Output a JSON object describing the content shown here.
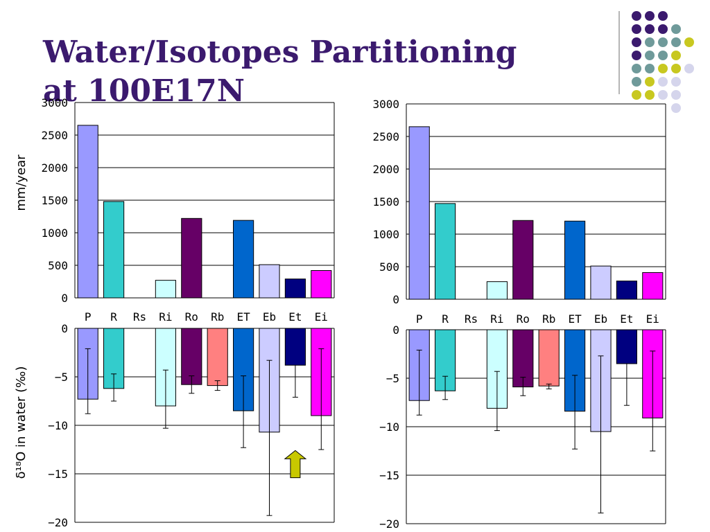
{
  "slide": {
    "title_line1": "Water/Isotopes Partitioning",
    "title_line2": "at 100E17N"
  },
  "decoration": {
    "dot_grid": [
      [
        "#3b1a6e",
        "#3b1a6e",
        "#3b1a6e",
        null,
        null
      ],
      [
        "#3b1a6e",
        "#3b1a6e",
        "#3b1a6e",
        "#6f9a9a",
        null
      ],
      [
        "#3b1a6e",
        "#6f9a9a",
        "#6f9a9a",
        "#6f9a9a",
        "#c8c820"
      ],
      [
        "#3b1a6e",
        "#6f9a9a",
        "#6f9a9a",
        "#c8c820",
        null
      ],
      [
        "#6f9a9a",
        "#6f9a9a",
        "#c8c820",
        "#c8c820",
        "#d5d5ec"
      ],
      [
        "#6f9a9a",
        "#c8c820",
        "#d5d5ec",
        "#d5d5ec",
        null
      ],
      [
        "#c8c820",
        "#c8c820",
        "#d5d5ec",
        "#d5d5ec",
        null
      ],
      [
        null,
        null,
        null,
        "#d5d5ec",
        null
      ]
    ],
    "line_color": "#b5b5b5"
  },
  "chart_data": [
    {
      "id": "flux-left",
      "type": "bar",
      "categories": [
        "P",
        "R",
        "Rs",
        "Ri",
        "Ro",
        "Rb",
        "ET",
        "Eb",
        "Et",
        "Ei"
      ],
      "values": [
        2650,
        1480,
        0,
        270,
        1220,
        0,
        1190,
        510,
        290,
        420
      ],
      "colors": [
        "#9999ff",
        "#33cccc",
        "#ccffff",
        "#ccffff",
        "#660066",
        "#ff8080",
        "#0066cc",
        "#ccccff",
        "#000080",
        "#ff00ff"
      ],
      "ylabel": "mm/year",
      "ylim": [
        0,
        3000
      ],
      "yticks": [
        0,
        500,
        1000,
        1500,
        2000,
        2500,
        3000
      ],
      "grid": true
    },
    {
      "id": "isotope-left",
      "type": "bar",
      "categories": [
        "P",
        "R",
        "Rs",
        "Ri",
        "Ro",
        "Rb",
        "ET",
        "Eb",
        "Et",
        "Ei"
      ],
      "values": [
        -7.3,
        -6.2,
        0,
        -8.0,
        -5.8,
        -5.9,
        -8.5,
        -10.7,
        -3.8,
        -9.0
      ],
      "error_low": [
        -8.8,
        -7.5,
        null,
        -10.3,
        -6.7,
        -6.4,
        -12.3,
        -19.3,
        -7.1,
        -12.5
      ],
      "error_high": [
        -2.1,
        -4.7,
        null,
        -4.3,
        -4.9,
        -5.4,
        -4.9,
        -3.3,
        null,
        -2.1
      ],
      "colors": [
        "#9999ff",
        "#33cccc",
        "#ccffff",
        "#ccffff",
        "#660066",
        "#ff8080",
        "#0066cc",
        "#ccccff",
        "#000080",
        "#ff00ff"
      ],
      "ylabel": "δ¹⁸O in water (‰)",
      "ylim": [
        -20,
        0
      ],
      "yticks": [
        0,
        -5,
        -10,
        -15,
        -20
      ],
      "grid": true,
      "annotation": {
        "type": "arrow-up",
        "category": "Et",
        "from": -15.4,
        "to": -12.6,
        "color": "#c8c800"
      }
    },
    {
      "id": "flux-right",
      "type": "bar",
      "categories": [
        "P",
        "R",
        "Rs",
        "Ri",
        "Ro",
        "Rb",
        "ET",
        "Eb",
        "Et",
        "Ei"
      ],
      "values": [
        2650,
        1470,
        0,
        270,
        1210,
        0,
        1200,
        510,
        280,
        410
      ],
      "colors": [
        "#9999ff",
        "#33cccc",
        "#ccffff",
        "#ccffff",
        "#660066",
        "#ff8080",
        "#0066cc",
        "#ccccff",
        "#000080",
        "#ff00ff"
      ],
      "ylabel": "",
      "ylim": [
        0,
        3000
      ],
      "yticks": [
        0,
        500,
        1000,
        1500,
        2000,
        2500,
        3000
      ],
      "grid": true
    },
    {
      "id": "isotope-right",
      "type": "bar",
      "categories": [
        "P",
        "R",
        "Rs",
        "Ri",
        "Ro",
        "Rb",
        "ET",
        "Eb",
        "Et",
        "Ei"
      ],
      "values": [
        -7.3,
        -6.3,
        0,
        -8.1,
        -5.9,
        -5.8,
        -8.4,
        -10.5,
        -3.5,
        -9.1
      ],
      "error_low": [
        -8.8,
        -7.2,
        null,
        -10.4,
        -6.8,
        -6.1,
        -12.3,
        -18.9,
        -7.8,
        -12.5
      ],
      "error_high": [
        -2.1,
        -4.8,
        null,
        -4.3,
        -4.9,
        -5.6,
        -4.7,
        -2.7,
        null,
        -2.2
      ],
      "colors": [
        "#9999ff",
        "#33cccc",
        "#ccffff",
        "#ccffff",
        "#660066",
        "#ff8080",
        "#0066cc",
        "#ccccff",
        "#000080",
        "#ff00ff"
      ],
      "ylabel": "",
      "ylim": [
        -20,
        0
      ],
      "yticks": [
        0,
        -5,
        -10,
        -15,
        -20
      ],
      "grid": true
    }
  ]
}
